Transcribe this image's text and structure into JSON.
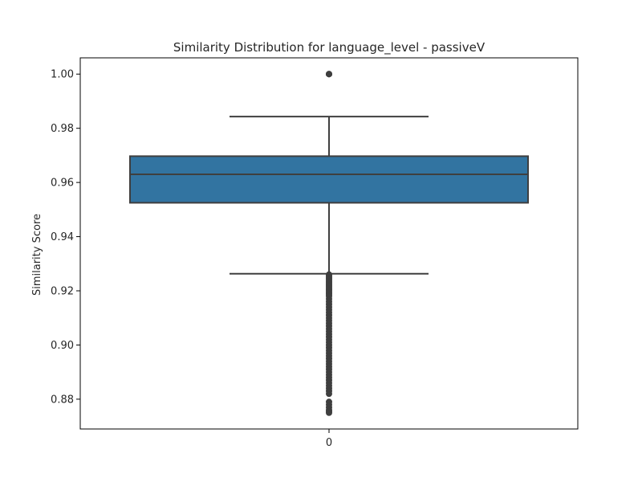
{
  "chart_data": {
    "type": "box",
    "title": "Similarity Distribution for language_level - passiveV",
    "xlabel": "",
    "ylabel": "Similarity Score",
    "categories": [
      "0"
    ],
    "ylim": [
      0.869,
      1.006
    ],
    "yticks": [
      0.88,
      0.9,
      0.92,
      0.94,
      0.96,
      0.98,
      1.0
    ],
    "ytick_labels": [
      "0.88",
      "0.90",
      "0.92",
      "0.94",
      "0.96",
      "0.98",
      "1.00"
    ],
    "grid": false,
    "legend": "none",
    "box": {
      "whisker_low": 0.9263,
      "q1": 0.9525,
      "median": 0.963,
      "q3": 0.9697,
      "whisker_high": 0.9843
    },
    "outliers": [
      1.0,
      1.0,
      1.0,
      0.926,
      0.9255,
      0.925,
      0.9245,
      0.924,
      0.9235,
      0.923,
      0.9225,
      0.922,
      0.9215,
      0.921,
      0.9205,
      0.92,
      0.9195,
      0.919,
      0.9185,
      0.918,
      0.917,
      0.916,
      0.915,
      0.914,
      0.913,
      0.912,
      0.911,
      0.91,
      0.909,
      0.908,
      0.907,
      0.906,
      0.905,
      0.904,
      0.903,
      0.902,
      0.901,
      0.9,
      0.899,
      0.898,
      0.897,
      0.896,
      0.895,
      0.894,
      0.893,
      0.892,
      0.891,
      0.89,
      0.889,
      0.888,
      0.887,
      0.886,
      0.885,
      0.884,
      0.883,
      0.882,
      0.879,
      0.878,
      0.877,
      0.876,
      0.8755,
      0.875
    ],
    "colors": {
      "box_fill": "#3274a1",
      "line": "#3f3f3f",
      "axis": "#000000",
      "text": "#262626"
    }
  }
}
